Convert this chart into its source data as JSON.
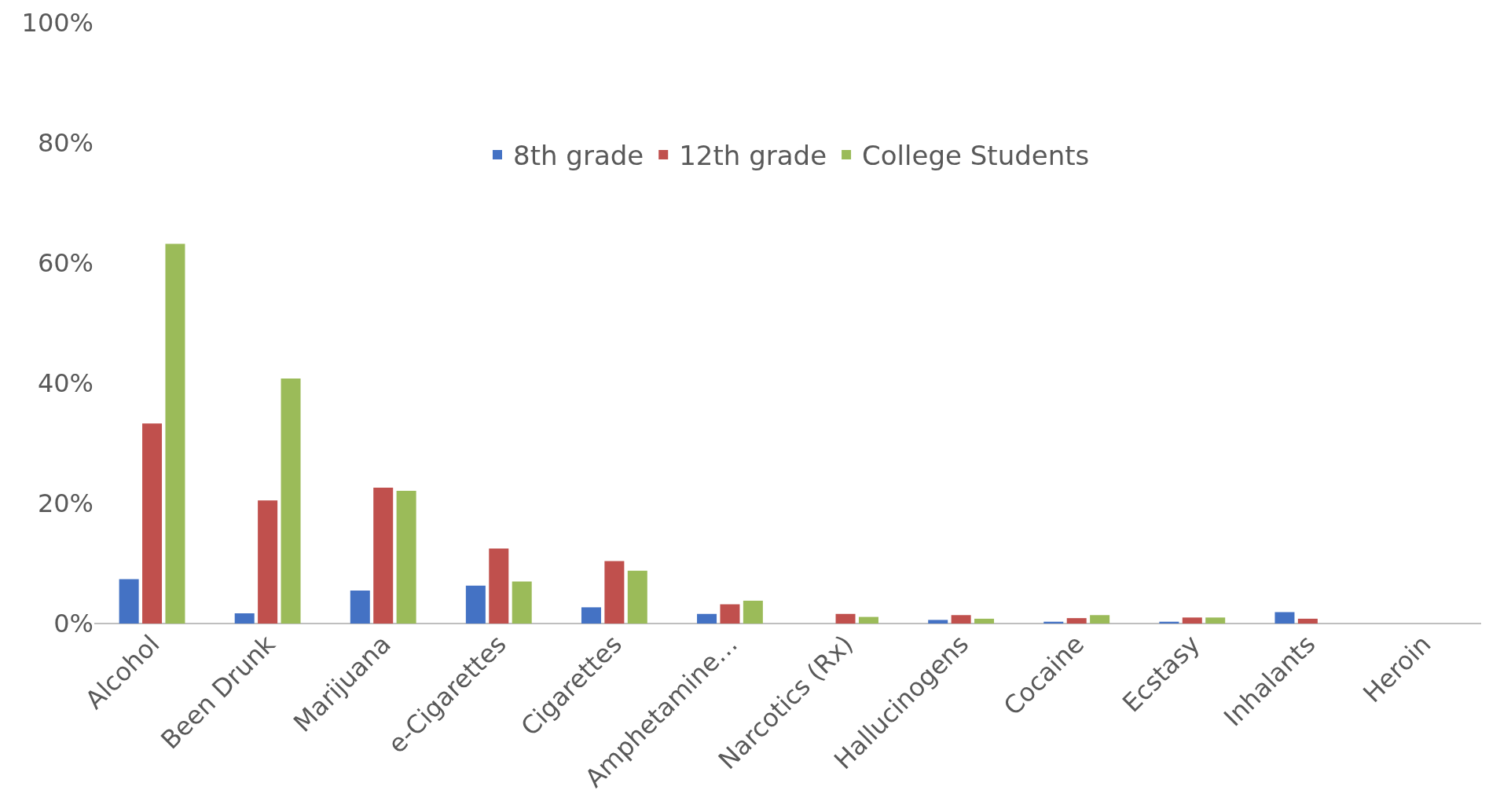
{
  "chart_data": {
    "type": "bar",
    "categories": [
      "Alcohol",
      "Been Drunk",
      "Marijuana",
      "e-Cigarettes",
      "Cigarettes",
      "Amphetamine…",
      "Narcotics (Rx)",
      "Hallucinogens",
      "Cocaine",
      "Ecstasy",
      "Inhalants",
      "Heroin"
    ],
    "series": [
      {
        "name": "8th grade",
        "color": "#4472c4",
        "values": [
          7.4,
          1.7,
          5.5,
          6.3,
          2.7,
          1.6,
          0,
          0.6,
          0.3,
          0.3,
          1.9,
          0
        ]
      },
      {
        "name": "12th grade",
        "color": "#c0504d",
        "values": [
          33.3,
          20.5,
          22.6,
          12.5,
          10.4,
          3.2,
          1.6,
          1.4,
          0.9,
          1.0,
          0.8,
          0
        ]
      },
      {
        "name": "College Students",
        "color": "#9bbb59",
        "values": [
          63.2,
          40.8,
          22.1,
          7.0,
          8.8,
          3.8,
          1.1,
          0.8,
          1.4,
          1.0,
          0,
          0
        ]
      }
    ],
    "ylim": [
      0,
      100
    ],
    "yticks": [
      {
        "value": 0,
        "label": "0%"
      },
      {
        "value": 20,
        "label": "20%"
      },
      {
        "value": 40,
        "label": "40%"
      },
      {
        "value": 60,
        "label": "60%"
      },
      {
        "value": 80,
        "label": "80%"
      },
      {
        "value": 100,
        "label": "100%"
      }
    ],
    "grid": false,
    "legend": "top"
  }
}
